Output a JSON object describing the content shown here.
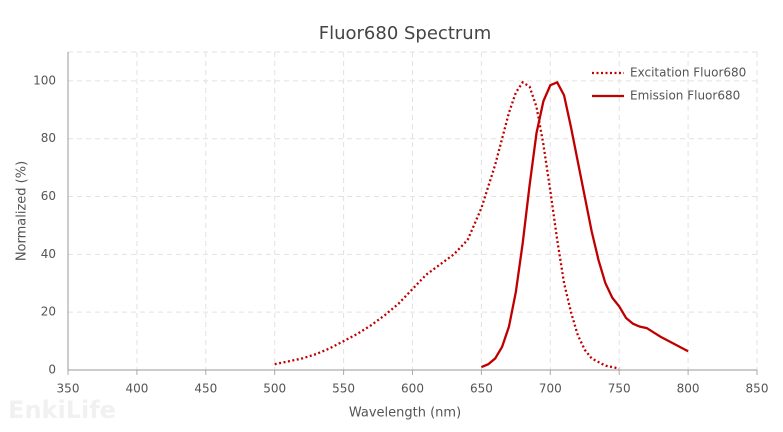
{
  "chart_data": {
    "type": "line",
    "title": "Fluor680  Spectrum",
    "watermark": "EnkiLife",
    "x_label": "Wavelength (nm)",
    "y_label": "Normalized (%)",
    "xlim": [
      350,
      850
    ],
    "xticks": [
      350,
      400,
      450,
      500,
      550,
      600,
      650,
      700,
      750,
      800,
      850
    ],
    "ylim": [
      0,
      110
    ],
    "yticks": [
      0,
      20,
      40,
      60,
      80,
      100
    ],
    "grid": true,
    "legend": "upper right",
    "series": [
      {
        "name": "Excitation Fluor680",
        "color": "#c00000",
        "line_style": "dotted",
        "x": [
          500,
          510,
          520,
          530,
          540,
          550,
          560,
          570,
          580,
          590,
          600,
          610,
          620,
          630,
          640,
          650,
          660,
          670,
          675,
          680,
          685,
          690,
          695,
          700,
          705,
          710,
          715,
          720,
          725,
          730,
          740,
          750
        ],
        "values": [
          2,
          3,
          4,
          5.5,
          7.5,
          10,
          12.5,
          15.5,
          19,
          23,
          28,
          33,
          36.5,
          40,
          45,
          56,
          71,
          89,
          96,
          99.5,
          98,
          91,
          78,
          62,
          45,
          30,
          20,
          12,
          7,
          4,
          1.5,
          0.5
        ]
      },
      {
        "name": "Emission Fluor680",
        "color": "#c00000",
        "line_style": "solid",
        "x": [
          650,
          655,
          660,
          665,
          670,
          675,
          680,
          685,
          690,
          695,
          700,
          705,
          710,
          715,
          720,
          725,
          730,
          735,
          740,
          745,
          750,
          755,
          760,
          765,
          770,
          775,
          780,
          790,
          800
        ],
        "values": [
          1,
          2,
          4,
          8,
          15,
          27,
          44,
          64,
          82,
          93,
          98.5,
          99.5,
          95,
          84,
          72,
          60,
          48,
          38,
          30,
          25,
          22,
          18,
          16,
          15,
          14.5,
          13,
          11.5,
          9,
          6.5
        ]
      }
    ]
  }
}
